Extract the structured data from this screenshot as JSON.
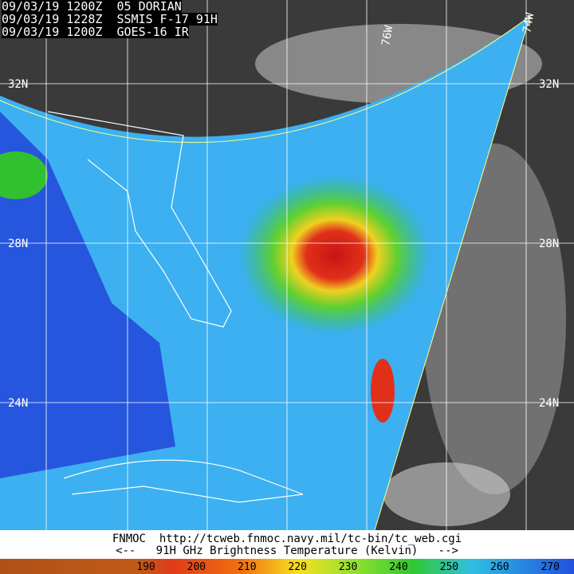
{
  "header": {
    "lines": [
      "09/03/19 1200Z  05 DORIAN",
      "09/03/19 1228Z  SSMIS F-17 91H",
      "09/03/19 1200Z  GOES-16 IR"
    ]
  },
  "map": {
    "lat_labels": [
      "32N",
      "28N",
      "24N"
    ],
    "lon_labels": [
      "76W",
      "74W"
    ]
  },
  "footer": {
    "source": "FNMOC  http://tcweb.fnmoc.navy.mil/tc-bin/tc_web.cgi",
    "caption": "<--   91H GHz Brightness Temperature (Kelvin)   -->"
  },
  "colorbar": {
    "ticks": [
      190,
      200,
      210,
      220,
      230,
      240,
      250,
      260,
      270
    ]
  }
}
